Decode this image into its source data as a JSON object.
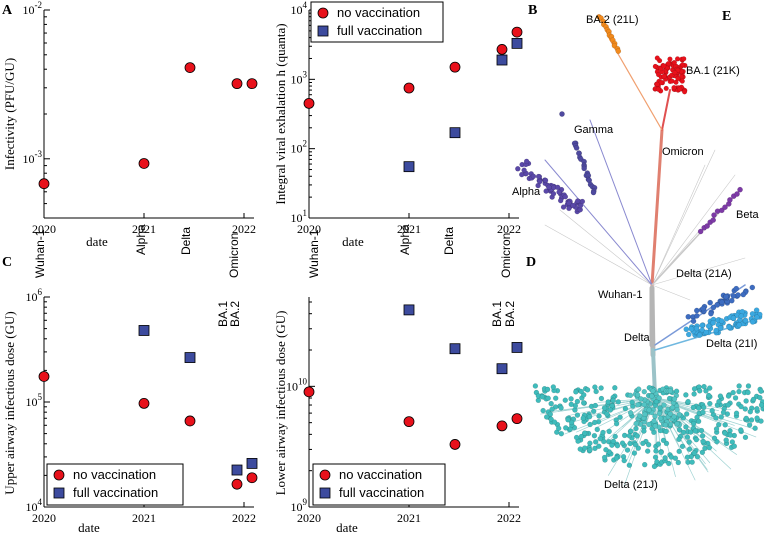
{
  "figure": {
    "panel_labels": {
      "A": "A",
      "B": "B",
      "C": "C",
      "D": "D",
      "E": "E"
    },
    "variant_labels": {
      "wuhan": "Wuhan-1",
      "alpha": "Alpha",
      "delta": "Delta",
      "omicron": "Omicron",
      "ba1": "BA.1",
      "ba2": "BA.2"
    },
    "colors": {
      "no_vaccination": "#e8111b",
      "full_vaccination": "#3d4b9e",
      "wuhan": "#a8a8a8",
      "alpha": "#4f4aa0",
      "delta": "#8fa8d8",
      "omicron": "#e8642a",
      "ba1": "#e8111b",
      "ba2": "#f28a1d",
      "beta": "#7d3aa6",
      "delta_21j": "#3fbcbc",
      "delta_21i": "#3aa8e0",
      "delta_21a": "#3d6cc0"
    },
    "tree_labels": {
      "ba2": "BA.2 (21L)",
      "ba1": "BA.1 (21K)",
      "gamma": "Gamma",
      "omicron": "Omicron",
      "alpha": "Alpha",
      "beta": "Beta",
      "wuhan": "Wuhan-1",
      "delta_21a": "Delta (21A)",
      "delta": "Delta",
      "delta_21i": "Delta (21I)",
      "delta_21j": "Delta (21J)"
    }
  },
  "chart_data": [
    {
      "id": "A",
      "type": "scatter",
      "yscale": "log",
      "ylabel": "Infectivity (PFU/GU)",
      "xlabel": "date",
      "ylim": [
        0.0004,
        0.01
      ],
      "xlim": [
        2020,
        2022.1
      ],
      "xticks": [
        "2020",
        "2021",
        "2022"
      ],
      "yticks": [
        "10-3",
        "10-2"
      ],
      "series": [
        {
          "name": "no vaccination",
          "x": [
            2020.0,
            2021.0,
            2021.46,
            2021.93,
            2022.08
          ],
          "values": [
            0.00068,
            0.00093,
            0.0041,
            0.0032,
            0.0032
          ]
        }
      ]
    },
    {
      "id": "A2",
      "type": "scatter",
      "yscale": "log",
      "ylabel": "Integral viral exhalation h (quanta)",
      "xlabel": "date",
      "ylim": [
        10,
        10000
      ],
      "xlim": [
        2020,
        2022.1
      ],
      "xticks": [
        "2020",
        "2021",
        "2022"
      ],
      "yticks": [
        "101",
        "102",
        "103",
        "104"
      ],
      "legend": {
        "position": "top",
        "entries": [
          "no vaccination",
          "full vaccination"
        ]
      },
      "series": [
        {
          "name": "no vaccination",
          "x": [
            2020.0,
            2021.0,
            2021.46,
            2021.93,
            2022.08
          ],
          "values": [
            450,
            750,
            1500,
            2700,
            4800
          ]
        },
        {
          "name": "full vaccination",
          "x": [
            2021.0,
            2021.46,
            2021.93,
            2022.08
          ],
          "values": [
            55,
            170,
            1900,
            3300
          ]
        }
      ]
    },
    {
      "id": "C",
      "type": "scatter",
      "yscale": "log",
      "ylabel": "Upper airway infectious dose (GU)",
      "xlabel": "date",
      "ylim": [
        10000,
        1000000
      ],
      "xlim": [
        2020,
        2022.1
      ],
      "xticks": [
        "2020",
        "2021",
        "2022"
      ],
      "yticks": [
        "104",
        "105",
        "106"
      ],
      "legend": {
        "position": "bottom",
        "entries": [
          "no vaccination",
          "full vaccination"
        ]
      },
      "series": [
        {
          "name": "no vaccination",
          "x": [
            2020.0,
            2021.0,
            2021.46,
            2021.93,
            2022.08
          ],
          "values": [
            175000,
            97000,
            66000,
            16500,
            19000
          ]
        },
        {
          "name": "full vaccination",
          "x": [
            2021.0,
            2021.46,
            2021.93,
            2022.08
          ],
          "values": [
            480000,
            265000,
            22500,
            26000
          ]
        }
      ]
    },
    {
      "id": "C2",
      "type": "scatter",
      "yscale": "log",
      "ylabel": "Lower airway infectious dose (GU)",
      "xlabel": "date",
      "ylim": [
        1000000000,
        55000000000
      ],
      "xlim": [
        2020,
        2022.1
      ],
      "xticks": [
        "2020",
        "2021",
        "2022"
      ],
      "yticks": [
        "109",
        "1010"
      ],
      "legend": {
        "position": "bottom",
        "entries": [
          "no vaccination",
          "full vaccination"
        ]
      },
      "series": [
        {
          "name": "no vaccination",
          "x": [
            2020.0,
            2021.0,
            2021.46,
            2021.93,
            2022.08
          ],
          "values": [
            9000000000,
            5100000000,
            3300000000,
            4700000000,
            5400000000
          ]
        },
        {
          "name": "full vaccination",
          "x": [
            2021.0,
            2021.46,
            2021.93,
            2022.08
          ],
          "values": [
            43000000000,
            20500000000,
            14000000000,
            21000000000
          ]
        }
      ]
    }
  ]
}
